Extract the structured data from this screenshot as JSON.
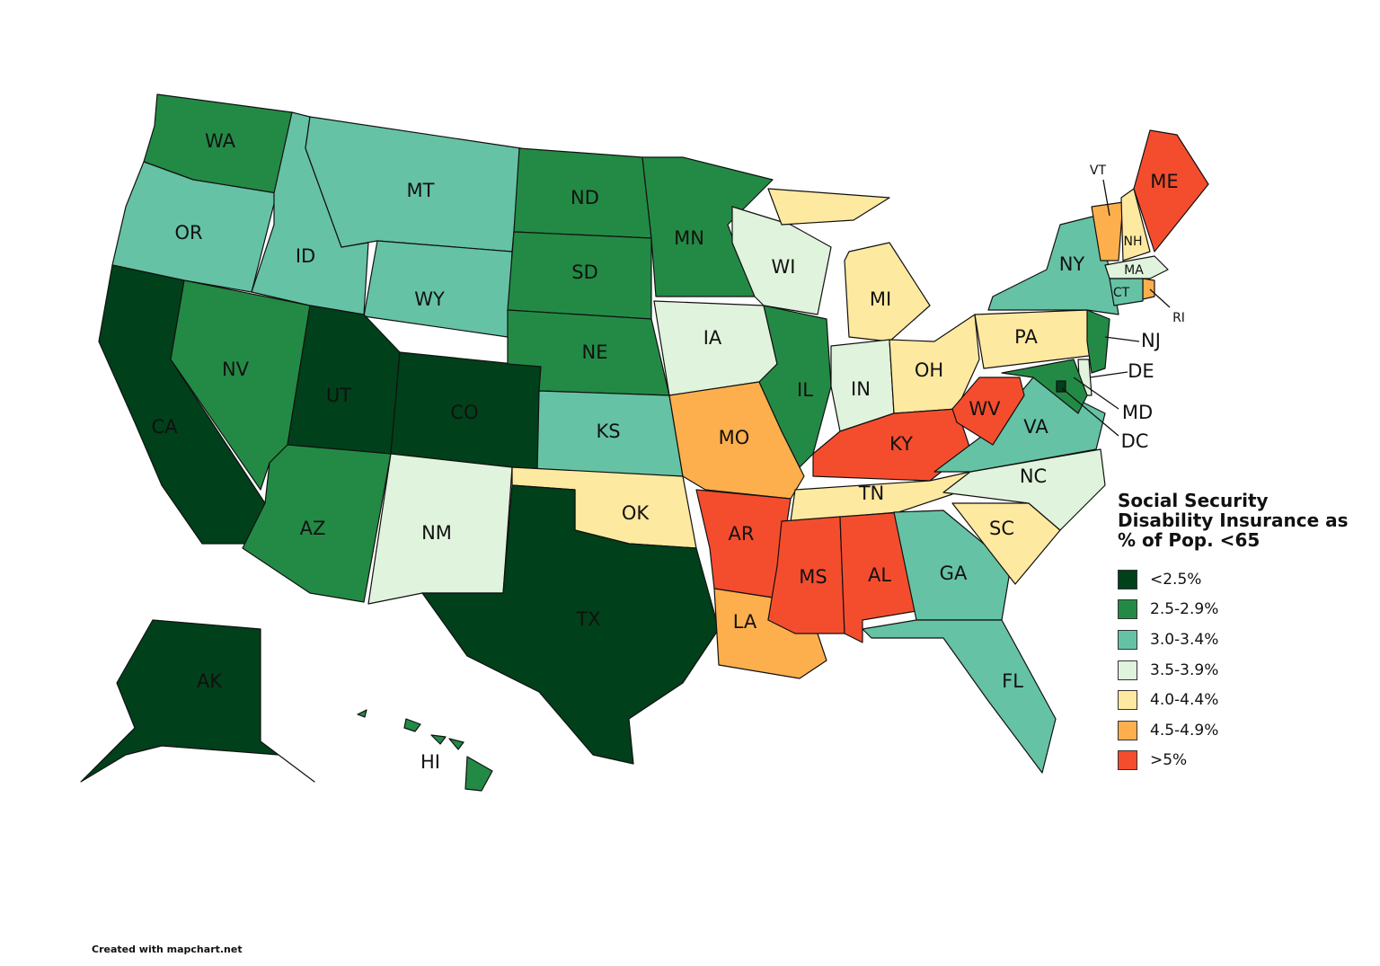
{
  "title": "Social Security Disability Insurance as % of Pop. <65",
  "legend": [
    {
      "label": "<2.5%",
      "color": "#00401a"
    },
    {
      "label": "2.5-2.9%",
      "color": "#238a45"
    },
    {
      "label": "3.0-3.4%",
      "color": "#66c2a5"
    },
    {
      "label": "3.5-3.9%",
      "color": "#e0f3dc"
    },
    {
      "label": "4.0-4.4%",
      "color": "#fee9a0"
    },
    {
      "label": "4.5-4.9%",
      "color": "#fcaf4c"
    },
    {
      "label": ">5%",
      "color": "#f44d2e"
    }
  ],
  "states": [
    {
      "label": "WA",
      "color": "#238a45"
    },
    {
      "label": "OR",
      "color": "#66c2a5"
    },
    {
      "label": "CA",
      "color": "#00401a"
    },
    {
      "label": "NV",
      "color": "#238a45"
    },
    {
      "label": "ID",
      "color": "#66c2a5"
    },
    {
      "label": "MT",
      "color": "#66c2a5"
    },
    {
      "label": "WY",
      "color": "#66c2a5"
    },
    {
      "label": "UT",
      "color": "#00401a"
    },
    {
      "label": "CO",
      "color": "#00401a"
    },
    {
      "label": "AZ",
      "color": "#238a45"
    },
    {
      "label": "NM",
      "color": "#e0f3dc"
    },
    {
      "label": "ND",
      "color": "#238a45"
    },
    {
      "label": "SD",
      "color": "#238a45"
    },
    {
      "label": "NE",
      "color": "#238a45"
    },
    {
      "label": "KS",
      "color": "#66c2a5"
    },
    {
      "label": "OK",
      "color": "#fee9a0"
    },
    {
      "label": "TX",
      "color": "#00401a"
    },
    {
      "label": "MN",
      "color": "#238a45"
    },
    {
      "label": "IA",
      "color": "#e0f3dc"
    },
    {
      "label": "MO",
      "color": "#fcaf4c"
    },
    {
      "label": "AR",
      "color": "#f44d2e"
    },
    {
      "label": "LA",
      "color": "#fcaf4c"
    },
    {
      "label": "WI",
      "color": "#e0f3dc"
    },
    {
      "label": "IL",
      "color": "#238a45"
    },
    {
      "label": "MI",
      "color": "#fee9a0"
    },
    {
      "label": "IN",
      "color": "#e0f3dc"
    },
    {
      "label": "OH",
      "color": "#fee9a0"
    },
    {
      "label": "KY",
      "color": "#f44d2e"
    },
    {
      "label": "TN",
      "color": "#fee9a0"
    },
    {
      "label": "MS",
      "color": "#f44d2e"
    },
    {
      "label": "AL",
      "color": "#f44d2e"
    },
    {
      "label": "GA",
      "color": "#66c2a5"
    },
    {
      "label": "FL",
      "color": "#66c2a5"
    },
    {
      "label": "SC",
      "color": "#fee9a0"
    },
    {
      "label": "NC",
      "color": "#e0f3dc"
    },
    {
      "label": "VA",
      "color": "#66c2a5"
    },
    {
      "label": "WV",
      "color": "#f44d2e"
    },
    {
      "label": "PA",
      "color": "#fee9a0"
    },
    {
      "label": "NY",
      "color": "#66c2a5"
    },
    {
      "label": "VT",
      "color": "#fcaf4c"
    },
    {
      "label": "NH",
      "color": "#fee9a0"
    },
    {
      "label": "ME",
      "color": "#f44d2e"
    },
    {
      "label": "MA",
      "color": "#e0f3dc"
    },
    {
      "label": "RI",
      "color": "#fcaf4c"
    },
    {
      "label": "CT",
      "color": "#66c2a5"
    },
    {
      "label": "NJ",
      "color": "#238a45"
    },
    {
      "label": "DE",
      "color": "#e0f3dc"
    },
    {
      "label": "MD",
      "color": "#238a45"
    },
    {
      "label": "DC",
      "color": "#00401a"
    },
    {
      "label": "AK",
      "color": "#00401a"
    },
    {
      "label": "HI",
      "color": "#238a45"
    }
  ],
  "credit": "Created with mapchart.net"
}
